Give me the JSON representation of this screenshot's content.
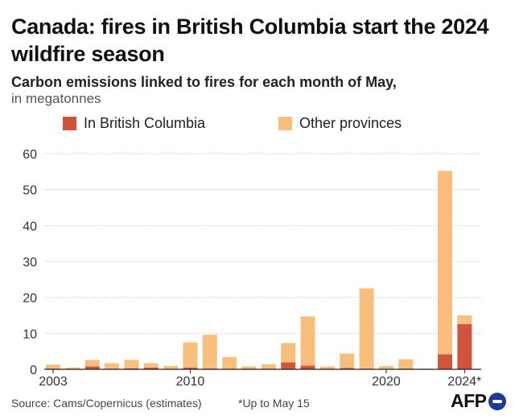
{
  "title": "Canada: fires in British Columbia start the 2024 wildfire season",
  "subtitle": "Carbon emissions linked to fires for each month of May,",
  "unit": "in megatonnes",
  "legend": [
    {
      "label": "In British Columbia",
      "color": "#d0533d"
    },
    {
      "label": "Other provinces",
      "color": "#f8be7c"
    }
  ],
  "footer": {
    "source": "Source: Cams/Copernicus (estimates)",
    "note": "*Up to May 15",
    "logo_text": "AFP"
  },
  "chart_data": {
    "type": "bar",
    "stacked": true,
    "categories": [
      "2003",
      "2004",
      "2005",
      "2006",
      "2007",
      "2008",
      "2009",
      "2010",
      "2011",
      "2012",
      "2013",
      "2014",
      "2015",
      "2016",
      "2017",
      "2018",
      "2019",
      "2020",
      "2021",
      "2022",
      "2023",
      "2024*"
    ],
    "x_tick_labels": [
      "2003",
      "2010",
      "2020",
      "2024*"
    ],
    "series": [
      {
        "name": "In British Columbia",
        "color": "#d0533d",
        "values": [
          0.2,
          0.1,
          0.8,
          0.2,
          0.3,
          0.5,
          0.1,
          0.5,
          0.2,
          0.1,
          0.2,
          0.2,
          1.9,
          1.0,
          0.2,
          0.4,
          0.2,
          0.1,
          0.2,
          0.1,
          4.2,
          12.6
        ]
      },
      {
        "name": "Other provinces",
        "color": "#f8be7c",
        "values": [
          1.1,
          0.4,
          1.8,
          1.5,
          2.3,
          1.2,
          0.8,
          7.0,
          9.4,
          3.3,
          0.6,
          1.2,
          5.4,
          13.7,
          0.6,
          4.0,
          22.3,
          0.8,
          2.6,
          0.1,
          51.0,
          2.4
        ]
      }
    ],
    "ylim": [
      0,
      60
    ],
    "yticks": [
      0,
      10,
      20,
      30,
      40,
      50,
      60
    ],
    "grid": true,
    "legend_position": "top"
  }
}
